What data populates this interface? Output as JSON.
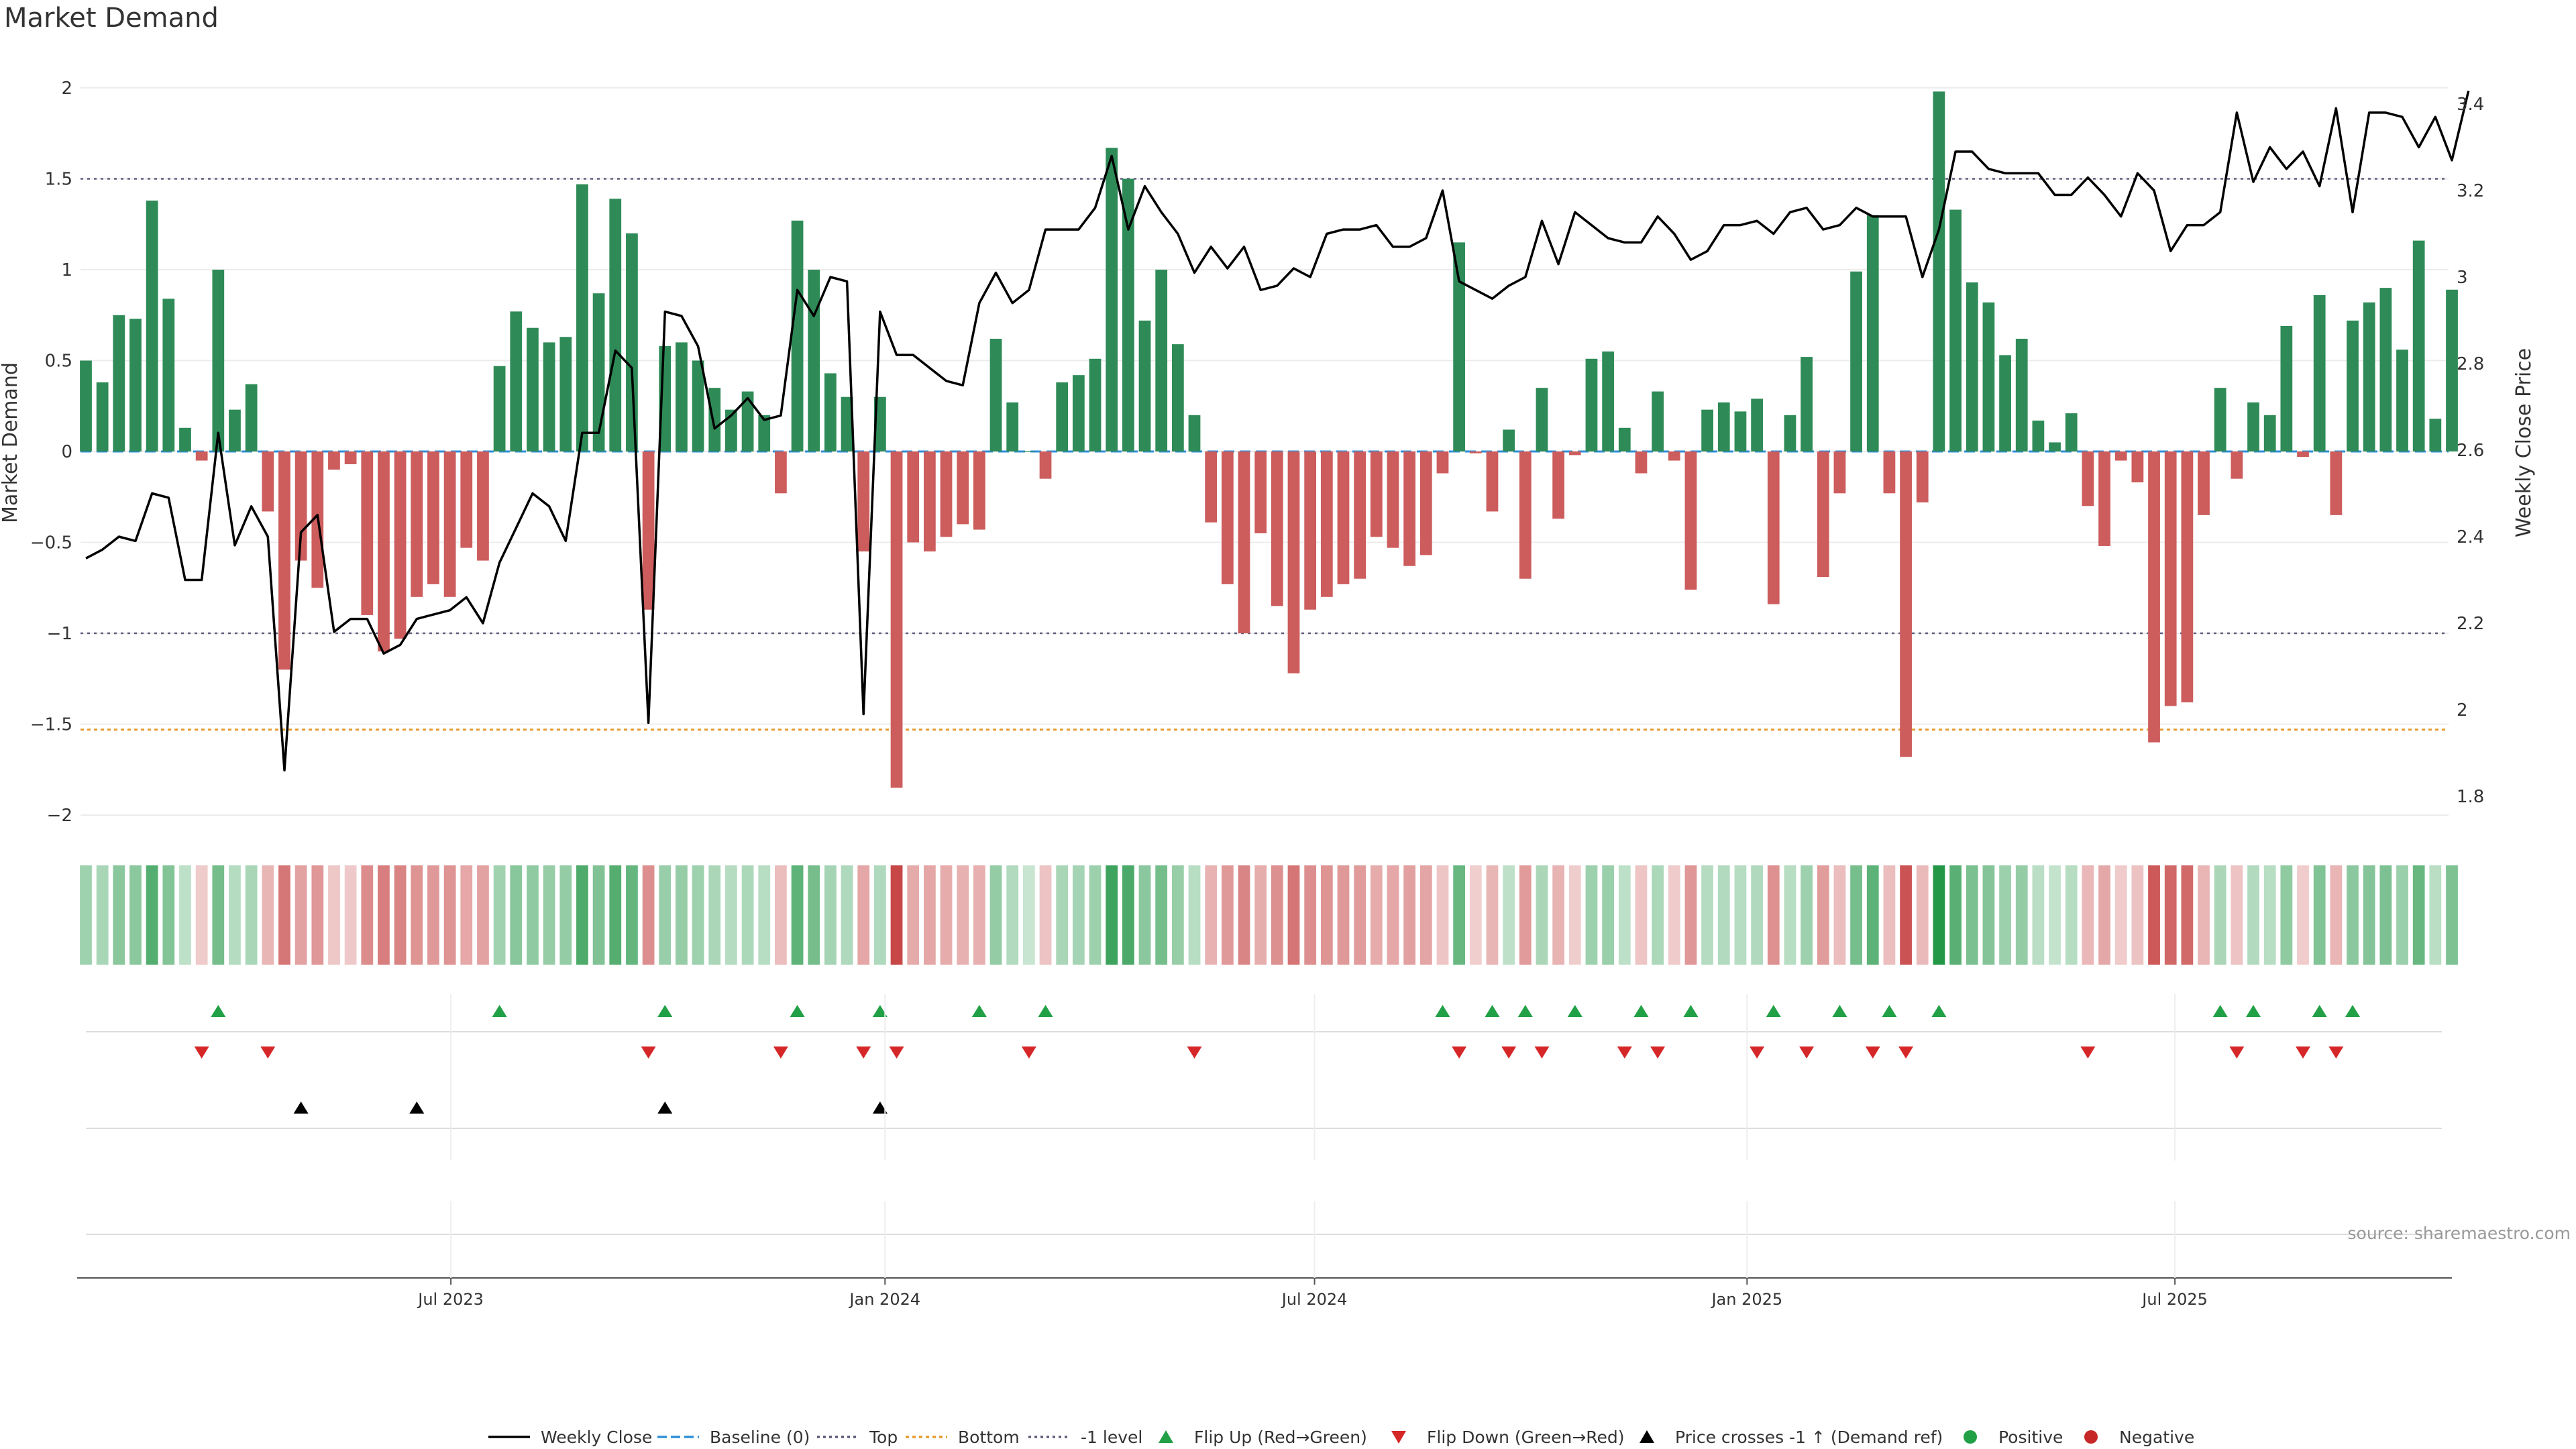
{
  "chart_data": {
    "type": "bar",
    "title": "Market Demand",
    "ylabel": "Market Demand",
    "y2label": "Weekly Close Price",
    "source": "source: sharemaestro.com",
    "ylim": [
      -2.2,
      2.2
    ],
    "y2lim": [
      1.72,
      3.48
    ],
    "yticks": [
      "2",
      "1.5",
      "1",
      "0.5",
      "0",
      "−0.5",
      "−1",
      "−1.5",
      "−2"
    ],
    "ytick_values": [
      2,
      1.5,
      1,
      0.5,
      0,
      -0.5,
      -1,
      -1.5,
      -2
    ],
    "y2ticks": [
      "3.4",
      "3.2",
      "3",
      "2.8",
      "2.6",
      "2.4",
      "2.2",
      "2",
      "1.8"
    ],
    "y2tick_values": [
      3.4,
      3.2,
      3.0,
      2.8,
      2.6,
      2.4,
      2.2,
      2.0,
      1.8
    ],
    "xticks": [
      "Jul 2023",
      "Jan 2024",
      "Jul 2024",
      "Jan 2025",
      "Jul 2025"
    ],
    "xtick_positions": [
      22.06,
      48.3,
      74.26,
      100.4,
      126.26
    ],
    "reference_lines": {
      "top": 1.5,
      "bottom": -1.53,
      "minus_one": -1.0,
      "baseline": 0
    },
    "demand": [
      0.5,
      0.38,
      0.75,
      0.73,
      1.38,
      0.84,
      0.13,
      -0.05,
      1.0,
      0.23,
      0.37,
      -0.33,
      -1.2,
      -0.6,
      -0.75,
      -0.1,
      -0.07,
      -0.9,
      -1.1,
      -1.03,
      -0.8,
      -0.73,
      -0.8,
      -0.53,
      -0.6,
      0.47,
      0.77,
      0.68,
      0.6,
      0.63,
      1.47,
      0.87,
      1.39,
      1.2,
      -0.87,
      0.58,
      0.6,
      0.5,
      0.35,
      0.23,
      0.33,
      0.2,
      -0.23,
      1.27,
      1.0,
      0.43,
      0.3,
      -0.55,
      0.3,
      -1.85,
      -0.5,
      -0.55,
      -0.47,
      -0.4,
      -0.43,
      0.62,
      0.27,
      0.0,
      -0.15,
      0.38,
      0.42,
      0.51,
      1.67,
      1.5,
      0.72,
      1.0,
      0.59,
      0.2,
      -0.39,
      -0.73,
      -1.0,
      -0.45,
      -0.85,
      -1.22,
      -0.87,
      -0.8,
      -0.73,
      -0.7,
      -0.47,
      -0.53,
      -0.63,
      -0.57,
      -0.12,
      1.15,
      -0.01,
      -0.33,
      0.12,
      -0.7,
      0.35,
      -0.37,
      -0.02,
      0.51,
      0.55,
      0.13,
      -0.12,
      0.33,
      -0.05,
      -0.76,
      0.23,
      0.27,
      0.22,
      0.29,
      -0.84,
      0.2,
      0.52,
      -0.69,
      -0.23,
      0.99,
      1.3,
      -0.23,
      -1.68,
      -0.28,
      1.98,
      1.33,
      0.93,
      0.82,
      0.53,
      0.62,
      0.17,
      0.05,
      0.21,
      -0.3,
      -0.52,
      -0.05,
      -0.17,
      -1.6,
      -1.4,
      -1.38,
      -0.35,
      0.35,
      -0.15,
      0.27,
      0.2,
      0.69,
      -0.03,
      0.86,
      -0.35,
      0.72,
      0.82,
      0.9,
      0.56,
      1.16,
      0.18,
      0.89
    ],
    "close": [
      2.35,
      2.37,
      2.4,
      2.39,
      2.5,
      2.49,
      2.3,
      2.3,
      2.64,
      2.38,
      2.47,
      2.4,
      1.86,
      2.41,
      2.45,
      2.18,
      2.21,
      2.21,
      2.13,
      2.15,
      2.21,
      2.22,
      2.23,
      2.26,
      2.2,
      2.34,
      2.42,
      2.5,
      2.47,
      2.39,
      2.64,
      2.64,
      2.83,
      2.79,
      1.97,
      2.92,
      2.91,
      2.84,
      2.65,
      2.68,
      2.72,
      2.67,
      2.68,
      2.97,
      2.91,
      3.0,
      2.99,
      1.99,
      2.92,
      2.82,
      2.82,
      2.79,
      2.76,
      2.75,
      2.94,
      3.01,
      2.94,
      2.97,
      3.11,
      3.11,
      3.11,
      3.16,
      3.28,
      3.11,
      3.21,
      3.15,
      3.1,
      3.01,
      3.07,
      3.02,
      3.07,
      2.97,
      2.98,
      3.02,
      3.0,
      3.1,
      3.11,
      3.11,
      3.12,
      3.07,
      3.07,
      3.09,
      3.2,
      2.99,
      2.97,
      2.95,
      2.98,
      3.0,
      3.13,
      3.03,
      3.15,
      3.12,
      3.09,
      3.08,
      3.08,
      3.14,
      3.1,
      3.04,
      3.06,
      3.12,
      3.12,
      3.13,
      3.1,
      3.15,
      3.16,
      3.11,
      3.12,
      3.16,
      3.14,
      3.14,
      3.14,
      3.0,
      3.11,
      3.29,
      3.29,
      3.25,
      3.24,
      3.24,
      3.24,
      3.19,
      3.19,
      3.23,
      3.19,
      3.14,
      3.24,
      3.2,
      3.06,
      3.12,
      3.12,
      3.15,
      3.38,
      3.22,
      3.3,
      3.25,
      3.29,
      3.21,
      3.39,
      3.15,
      3.38,
      3.38,
      3.37,
      3.3,
      3.37,
      3.27,
      3.43
    ],
    "flip_up_index": [
      8,
      25,
      35,
      43,
      48,
      54,
      58,
      82,
      85,
      87,
      90,
      94,
      97,
      102,
      106,
      109,
      112,
      129,
      131,
      135,
      137
    ],
    "flip_down_index": [
      7,
      11,
      34,
      42,
      47,
      49,
      57,
      67,
      83,
      86,
      88,
      93,
      95,
      101,
      104,
      108,
      110,
      121,
      130,
      134,
      136
    ],
    "price_cross_index": [
      13,
      20,
      35,
      48
    ],
    "legend": [
      "Weekly Close",
      "Baseline (0)",
      "Top",
      "Bottom",
      "-1 level",
      "Flip Up (Red→Green)",
      "Flip Down (Green→Red)",
      "Price crosses -1 ↑ (Demand ref)",
      "Positive",
      "Negative"
    ],
    "legend_placement": "bottom-center",
    "grid": true
  },
  "colors": {
    "positive": "#2e8b57",
    "negative": "#cd5c5c",
    "line": "#000000",
    "top": "#5c5c7a",
    "bottom": "#e69b2e",
    "baseline": "#2f8fd8",
    "flip_up": "#22a046",
    "flip_down": "#d62728",
    "cross": "#000000",
    "dot_positive": "#22a046",
    "dot_negative": "#c62828"
  }
}
